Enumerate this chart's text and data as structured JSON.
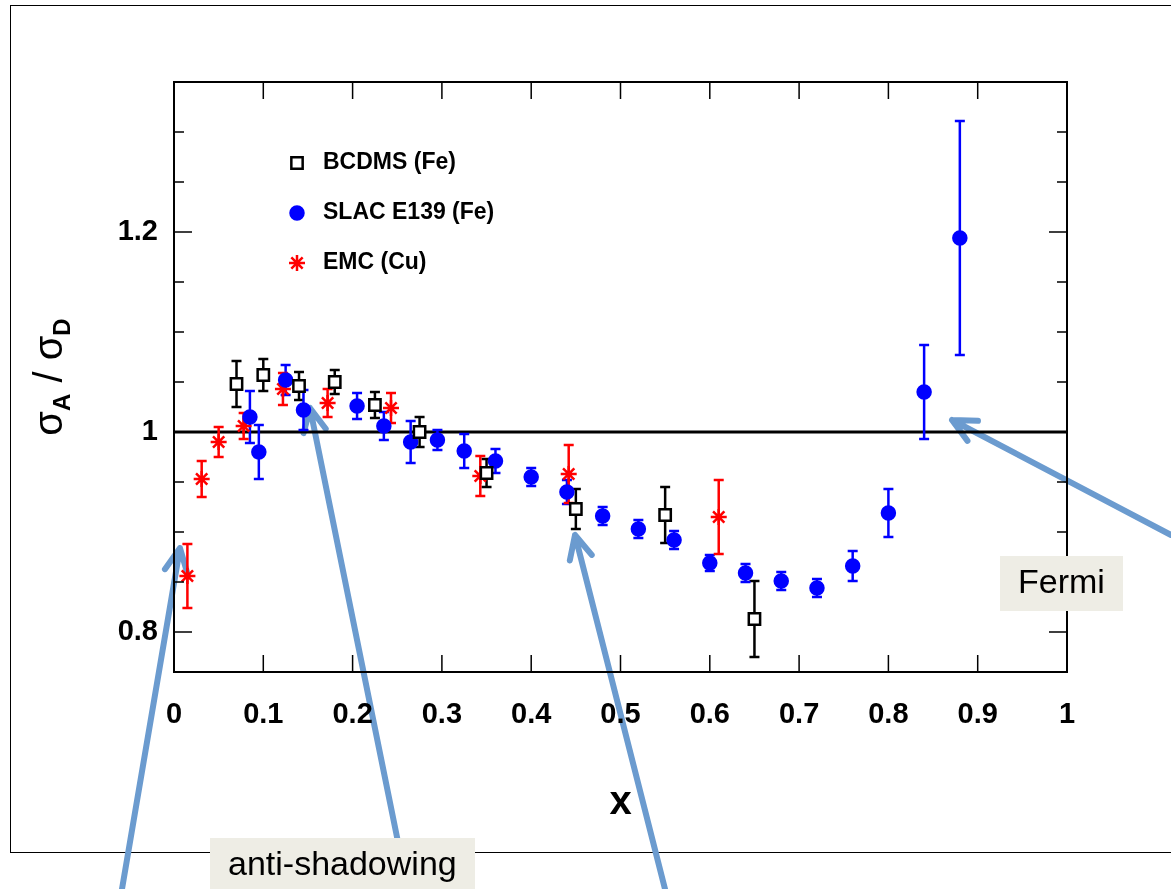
{
  "chart_data": {
    "type": "scatter",
    "xlabel": "x",
    "ylabel": "σ$_{A}$ / σ$_{D}$",
    "xlim": [
      0,
      1
    ],
    "xticks": [
      0,
      0.1,
      0.2,
      0.3,
      0.4,
      0.5,
      0.6,
      0.7,
      0.8,
      0.9,
      1
    ],
    "ylim": [
      0.76,
      1.35
    ],
    "yticks": [
      0.8,
      {
        "value": 0.85,
        "label": null
      },
      {
        "value": 0.9,
        "label": null
      },
      {
        "value": 0.95,
        "label": null
      },
      1,
      {
        "value": 1.05,
        "label": null
      },
      {
        "value": 1.1,
        "label": null
      },
      {
        "value": 1.15,
        "label": null
      },
      1.2,
      {
        "value": 1.25,
        "label": null
      },
      {
        "value": 1.3,
        "label": null
      }
    ],
    "grid": false,
    "legend": "top left",
    "series": [
      {
        "name": "BCDMS (Fe)",
        "color": "#000000",
        "marker": "square",
        "x": [
          0.07,
          0.1,
          0.14,
          0.18,
          0.225,
          0.275,
          0.35,
          0.45,
          0.55,
          0.65
        ],
        "values": [
          1.048,
          1.057,
          1.046,
          1.05,
          1.027,
          1.0,
          0.959,
          0.923,
          0.917,
          0.813
        ],
        "errors": [
          0.023,
          0.016,
          0.014,
          0.012,
          0.013,
          0.015,
          0.014,
          0.02,
          0.028,
          0.038
        ]
      },
      {
        "name": "SLAC E139 (Fe)",
        "color": "#0000ff",
        "marker": "circle",
        "x": [
          0.085,
          0.095,
          0.125,
          0.145,
          0.205,
          0.235,
          0.265,
          0.295,
          0.325,
          0.36,
          0.4,
          0.44,
          0.48,
          0.52,
          0.56,
          0.6,
          0.64,
          0.68,
          0.72,
          0.76,
          0.8,
          0.84,
          0.88
        ],
        "values": [
          1.015,
          0.98,
          1.052,
          1.022,
          1.026,
          1.006,
          0.99,
          0.992,
          0.981,
          0.971,
          0.955,
          0.94,
          0.916,
          0.903,
          0.892,
          0.869,
          0.859,
          0.851,
          0.844,
          0.866,
          0.919,
          1.04,
          1.194
        ],
        "errors": [
          0.026,
          0.027,
          0.015,
          0.02,
          0.013,
          0.014,
          0.021,
          0.01,
          0.017,
          0.012,
          0.009,
          0.012,
          0.009,
          0.009,
          0.009,
          0.008,
          0.009,
          0.009,
          0.009,
          0.015,
          0.024,
          0.047,
          0.117
        ]
      },
      {
        "name": "EMC (Cu)",
        "color": "#ff0000",
        "marker": "cross",
        "x": [
          0.015,
          0.031,
          0.05,
          0.078,
          0.122,
          0.172,
          0.243,
          0.343,
          0.442,
          0.61
        ],
        "values": [
          0.856,
          0.953,
          0.99,
          1.006,
          1.043,
          1.029,
          1.024,
          0.956,
          0.958,
          0.915
        ],
        "errors": [
          0.032,
          0.018,
          0.015,
          0.013,
          0.016,
          0.014,
          0.015,
          0.02,
          0.029,
          0.037
        ]
      }
    ],
    "ref_lines": [
      {
        "axis": "y",
        "value": 1,
        "color": "#000000"
      }
    ],
    "annotations": [
      "anti-shadowing",
      "Fermi"
    ]
  }
}
